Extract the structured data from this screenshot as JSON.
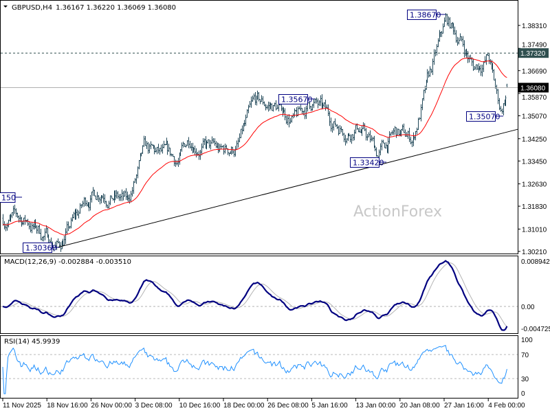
{
  "header": {
    "symbol": "GBPUSD,H4",
    "ohlc": "1.36167 1.36220 1.36069 1.36080"
  },
  "watermark": "ActionForex",
  "colors": {
    "bars": "#1f4657",
    "ma": "#ff0000",
    "macd_main": "#000080",
    "macd_signal": "#b4b4b4",
    "rsi": "#1e90ff",
    "annotation": "#000080",
    "current_price_tag": "#000000",
    "level_tag": "#2f4f4f"
  },
  "chart_data": [
    {
      "type": "ohlc",
      "title": "GBPUSD,H4",
      "last": {
        "open": 1.36167,
        "high": 1.3622,
        "low": 1.36069,
        "close": 1.3608
      },
      "y_ticks": [
        "1.38310",
        "1.37490",
        "1.36690",
        "1.35870",
        "1.35070",
        "1.34250",
        "1.33450",
        "1.32630",
        "1.31830",
        "1.31010",
        "1.30210"
      ],
      "ylim": [
        1.3021,
        1.3831
      ],
      "x_ticks": [
        "11 Nov 2025",
        "18 Nov 16:00",
        "26 Nov 00:00",
        "3 Dec 08:00",
        "10 Dec 16:00",
        "18 Dec 00:00",
        "26 Dec 08:00",
        "5 Jan 16:00",
        "13 Jan 00:00",
        "20 Jan 08:00",
        "27 Jan 16:00",
        "4 Feb 00:00"
      ],
      "approx_close_path": [
        [
          "2025-11-11 00:00",
          1.314
        ],
        [
          "2025-11-15 06:00",
          1.313
        ],
        [
          "2025-11-20 18:00",
          1.304
        ],
        [
          "2025-11-26 06:00",
          1.322
        ],
        [
          "2025-11-28 16:00",
          1.325
        ],
        [
          "2025-12-02 22:00",
          1.319
        ],
        [
          "2025-12-05 22:00",
          1.337
        ],
        [
          "2025-12-12 00:00",
          1.334
        ],
        [
          "2025-12-13 20:00",
          1.343
        ],
        [
          "2025-12-19 08:00",
          1.337
        ],
        [
          "2025-12-22 08:00",
          1.34
        ],
        [
          "2025-12-25 08:00",
          1.354
        ],
        [
          "2025-12-29 00:00",
          1.354
        ],
        [
          "2026-01-01 14:00",
          1.349
        ],
        [
          "2026-01-04 14:00",
          1.356
        ],
        [
          "2026-01-07 14:00",
          1.349
        ],
        [
          "2026-01-10 16:00",
          1.346
        ],
        [
          "2026-01-12 12:00",
          1.348
        ],
        [
          "2026-01-16 02:00",
          1.337
        ],
        [
          "2026-01-19 02:00",
          1.344
        ],
        [
          "2026-01-22 04:00",
          1.342
        ],
        [
          "2026-01-24 00:00",
          1.356
        ],
        [
          "2026-01-26 00:00",
          1.37
        ],
        [
          "2026-01-28 00:00",
          1.384
        ],
        [
          "2026-01-30 14:00",
          1.378
        ],
        [
          "2026-02-01 20:00",
          1.368
        ],
        [
          "2026-02-04 12:00",
          1.372
        ],
        [
          "2026-02-05 22:00",
          1.358
        ],
        [
          "2026-02-06 16:00",
          1.3525
        ],
        [
          "2026-02-08 00:00",
          1.3608
        ]
      ],
      "moving_average_color": "#ff0000",
      "trendline": [
        [
          "2025-11-20 18:00",
          1.3036
        ],
        [
          "2026-02-09 00:00",
          1.3455
        ]
      ],
      "levels": [
        {
          "price": 1.3732,
          "label": "1.37320",
          "style": "dashed"
        },
        {
          "price": 1.3608,
          "label": "1.36080",
          "style": "solid-current"
        }
      ],
      "annotations": [
        "1.38670",
        "1.35670",
        "1.35070",
        "1.33420",
        "1.30360",
        "150"
      ]
    },
    {
      "type": "line",
      "title": "MACD(12,26,9) -0.002884 -0.003510",
      "series": [
        {
          "name": "MACD",
          "last": -0.002884
        },
        {
          "name": "Signal",
          "last": -0.00351
        }
      ],
      "y_ticks": [
        "0.008942",
        "0.00",
        "-0.004725"
      ],
      "ylim": [
        -0.004725,
        0.008942
      ]
    },
    {
      "type": "line",
      "title": "RSI(14) 45.9939",
      "series": [
        {
          "name": "RSI(14)",
          "last": 45.9939
        }
      ],
      "y_ticks": [
        "100",
        "70",
        "30",
        "0"
      ],
      "levels": [
        70,
        30
      ],
      "ylim": [
        0,
        100
      ]
    }
  ]
}
